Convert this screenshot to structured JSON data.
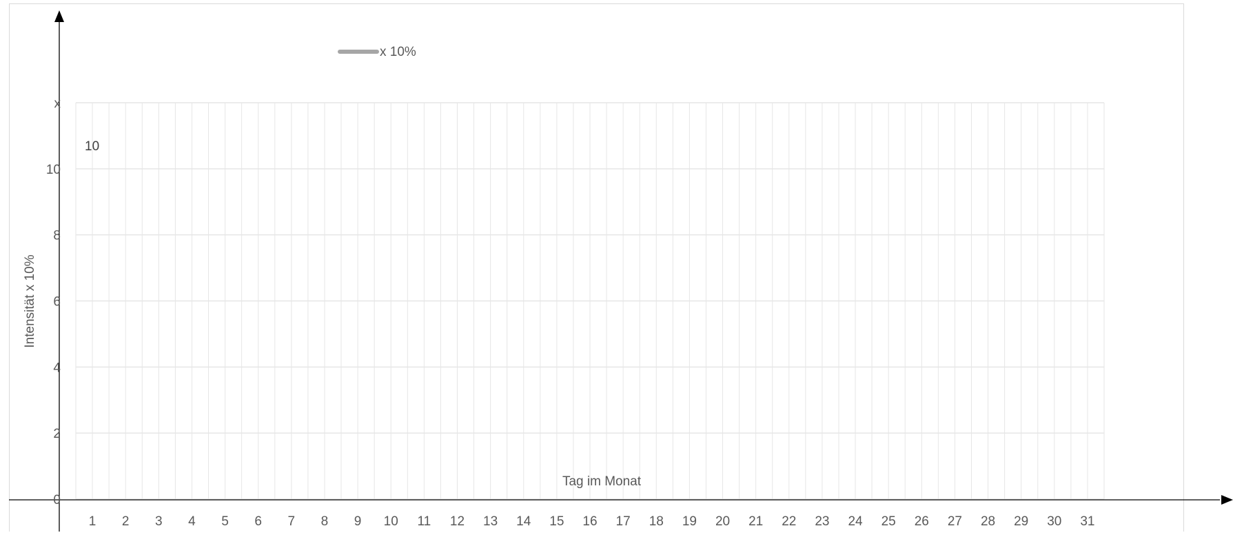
{
  "chart_data": {
    "type": "line",
    "title": "",
    "xlabel": "Tag im Monat",
    "ylabel": "Intensität x 10%",
    "categories": [
      "1",
      "2",
      "3",
      "4",
      "5",
      "6",
      "7",
      "8",
      "9",
      "10",
      "11",
      "12",
      "13",
      "14",
      "15",
      "16",
      "17",
      "18",
      "19",
      "20",
      "21",
      "22",
      "23",
      "24",
      "25",
      "26",
      "27",
      "28",
      "29",
      "30",
      "31"
    ],
    "yticks": [
      "0",
      "2",
      "4",
      "6",
      "8",
      "10",
      "x"
    ],
    "ylim": [
      0,
      12
    ],
    "grid": true,
    "legend": {
      "placement": "top",
      "entries": [
        {
          "label": "x 10%",
          "color": "#a6a6a6"
        }
      ]
    },
    "annotation": "10",
    "series": [
      {
        "name": "x 10%",
        "values": [
          null,
          null,
          null,
          null,
          null,
          null,
          null,
          null,
          null,
          null,
          null,
          null,
          null,
          null,
          null,
          null,
          null,
          null,
          null,
          null,
          null,
          null,
          null,
          null,
          null,
          null,
          null,
          null,
          null,
          null,
          null
        ]
      }
    ]
  },
  "colors": {
    "gridline": "#e6e6e6",
    "axis": "#000000",
    "text": "#595959",
    "series": "#a6a6a6",
    "border": "#d9d9d9"
  }
}
